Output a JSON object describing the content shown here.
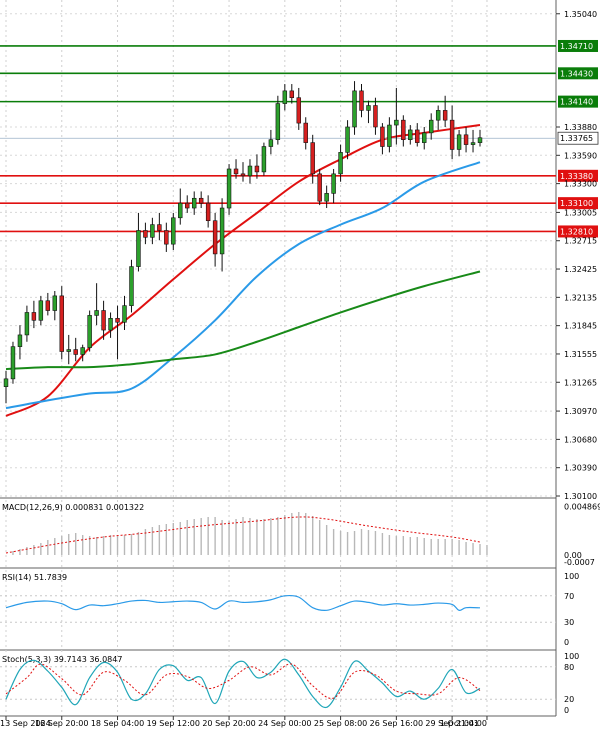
{
  "chart_data": {
    "type": "candlestick",
    "price_panel": {
      "y_ticks": [
        "1.35040",
        "1.33880",
        "1.33590",
        "1.33300",
        "1.33005",
        "1.32715",
        "1.32425",
        "1.32135",
        "1.31845",
        "1.31555",
        "1.31265",
        "1.30970",
        "1.30680",
        "1.30390",
        "1.30100"
      ],
      "ylim": [
        1.301,
        1.3514
      ],
      "current_price": "1.33765",
      "horizontal_levels": [
        {
          "label": "1.34710",
          "value": 1.3471,
          "color": "#0a7d0a"
        },
        {
          "label": "1.34430",
          "value": 1.3443,
          "color": "#0a7d0a"
        },
        {
          "label": "1.34140",
          "value": 1.3414,
          "color": "#0a7d0a"
        },
        {
          "label": "1.33380",
          "value": 1.3338,
          "color": "#e01010"
        },
        {
          "label": "1.33100",
          "value": 1.331,
          "color": "#e01010"
        },
        {
          "label": "1.32810",
          "value": 1.3281,
          "color": "#e01010"
        }
      ],
      "candles": [
        {
          "o": 1.3122,
          "h": 1.3138,
          "l": 1.3105,
          "c": 1.313
        },
        {
          "o": 1.313,
          "h": 1.3168,
          "l": 1.3125,
          "c": 1.3163
        },
        {
          "o": 1.3163,
          "h": 1.3185,
          "l": 1.315,
          "c": 1.3175
        },
        {
          "o": 1.3175,
          "h": 1.3205,
          "l": 1.3168,
          "c": 1.3198
        },
        {
          "o": 1.3198,
          "h": 1.321,
          "l": 1.3182,
          "c": 1.319
        },
        {
          "o": 1.319,
          "h": 1.3215,
          "l": 1.3185,
          "c": 1.321
        },
        {
          "o": 1.321,
          "h": 1.3218,
          "l": 1.3195,
          "c": 1.32
        },
        {
          "o": 1.32,
          "h": 1.322,
          "l": 1.319,
          "c": 1.3215
        },
        {
          "o": 1.3215,
          "h": 1.3225,
          "l": 1.315,
          "c": 1.3158
        },
        {
          "o": 1.3158,
          "h": 1.3175,
          "l": 1.3145,
          "c": 1.316
        },
        {
          "o": 1.316,
          "h": 1.3172,
          "l": 1.3148,
          "c": 1.3155
        },
        {
          "o": 1.3155,
          "h": 1.3165,
          "l": 1.3148,
          "c": 1.3162
        },
        {
          "o": 1.3162,
          "h": 1.32,
          "l": 1.3158,
          "c": 1.3195
        },
        {
          "o": 1.3195,
          "h": 1.3228,
          "l": 1.3185,
          "c": 1.32
        },
        {
          "o": 1.32,
          "h": 1.321,
          "l": 1.317,
          "c": 1.318
        },
        {
          "o": 1.318,
          "h": 1.3198,
          "l": 1.3172,
          "c": 1.3192
        },
        {
          "o": 1.3192,
          "h": 1.3205,
          "l": 1.315,
          "c": 1.3188
        },
        {
          "o": 1.3188,
          "h": 1.3215,
          "l": 1.318,
          "c": 1.3205
        },
        {
          "o": 1.3205,
          "h": 1.3252,
          "l": 1.3198,
          "c": 1.3245
        },
        {
          "o": 1.3245,
          "h": 1.33,
          "l": 1.324,
          "c": 1.3282
        },
        {
          "o": 1.3282,
          "h": 1.329,
          "l": 1.3268,
          "c": 1.3275
        },
        {
          "o": 1.3275,
          "h": 1.3295,
          "l": 1.3268,
          "c": 1.3288
        },
        {
          "o": 1.3288,
          "h": 1.33,
          "l": 1.3272,
          "c": 1.3282
        },
        {
          "o": 1.3282,
          "h": 1.329,
          "l": 1.326,
          "c": 1.3268
        },
        {
          "o": 1.3268,
          "h": 1.33,
          "l": 1.3262,
          "c": 1.3295
        },
        {
          "o": 1.3295,
          "h": 1.3325,
          "l": 1.3288,
          "c": 1.331
        },
        {
          "o": 1.331,
          "h": 1.3318,
          "l": 1.33,
          "c": 1.3305
        },
        {
          "o": 1.3305,
          "h": 1.3322,
          "l": 1.3298,
          "c": 1.3315
        },
        {
          "o": 1.3315,
          "h": 1.3322,
          "l": 1.3305,
          "c": 1.331
        },
        {
          "o": 1.331,
          "h": 1.3318,
          "l": 1.3285,
          "c": 1.3292
        },
        {
          "o": 1.3292,
          "h": 1.33,
          "l": 1.3245,
          "c": 1.3258
        },
        {
          "o": 1.3258,
          "h": 1.3315,
          "l": 1.324,
          "c": 1.3305
        },
        {
          "o": 1.3305,
          "h": 1.335,
          "l": 1.3298,
          "c": 1.3345
        },
        {
          "o": 1.3345,
          "h": 1.3355,
          "l": 1.3335,
          "c": 1.334
        },
        {
          "o": 1.334,
          "h": 1.3352,
          "l": 1.3332,
          "c": 1.3338
        },
        {
          "o": 1.3338,
          "h": 1.3355,
          "l": 1.333,
          "c": 1.3348
        },
        {
          "o": 1.3348,
          "h": 1.336,
          "l": 1.3335,
          "c": 1.3342
        },
        {
          "o": 1.3342,
          "h": 1.3372,
          "l": 1.3338,
          "c": 1.3368
        },
        {
          "o": 1.3368,
          "h": 1.3385,
          "l": 1.336,
          "c": 1.3375
        },
        {
          "o": 1.3375,
          "h": 1.342,
          "l": 1.337,
          "c": 1.3412
        },
        {
          "o": 1.3412,
          "h": 1.3432,
          "l": 1.3405,
          "c": 1.3425
        },
        {
          "o": 1.3425,
          "h": 1.3432,
          "l": 1.3412,
          "c": 1.3418
        },
        {
          "o": 1.3418,
          "h": 1.3428,
          "l": 1.3385,
          "c": 1.3392
        },
        {
          "o": 1.3392,
          "h": 1.3398,
          "l": 1.3365,
          "c": 1.3372
        },
        {
          "o": 1.3372,
          "h": 1.338,
          "l": 1.333,
          "c": 1.334
        },
        {
          "o": 1.334,
          "h": 1.3345,
          "l": 1.3308,
          "c": 1.3312
        },
        {
          "o": 1.3312,
          "h": 1.3328,
          "l": 1.3305,
          "c": 1.332
        },
        {
          "o": 1.332,
          "h": 1.3345,
          "l": 1.331,
          "c": 1.334
        },
        {
          "o": 1.334,
          "h": 1.337,
          "l": 1.3332,
          "c": 1.3362
        },
        {
          "o": 1.3362,
          "h": 1.3395,
          "l": 1.3355,
          "c": 1.3388
        },
        {
          "o": 1.3388,
          "h": 1.3435,
          "l": 1.338,
          "c": 1.3425
        },
        {
          "o": 1.3425,
          "h": 1.3432,
          "l": 1.3398,
          "c": 1.3405
        },
        {
          "o": 1.3405,
          "h": 1.3415,
          "l": 1.3392,
          "c": 1.341
        },
        {
          "o": 1.341,
          "h": 1.3418,
          "l": 1.338,
          "c": 1.3388
        },
        {
          "o": 1.3388,
          "h": 1.3392,
          "l": 1.336,
          "c": 1.3368
        },
        {
          "o": 1.3368,
          "h": 1.3398,
          "l": 1.3362,
          "c": 1.339
        },
        {
          "o": 1.339,
          "h": 1.3428,
          "l": 1.337,
          "c": 1.3395
        },
        {
          "o": 1.3395,
          "h": 1.34,
          "l": 1.3368,
          "c": 1.3375
        },
        {
          "o": 1.3375,
          "h": 1.339,
          "l": 1.337,
          "c": 1.3385
        },
        {
          "o": 1.3385,
          "h": 1.3392,
          "l": 1.3368,
          "c": 1.3372
        },
        {
          "o": 1.3372,
          "h": 1.3388,
          "l": 1.3365,
          "c": 1.3382
        },
        {
          "o": 1.3382,
          "h": 1.3402,
          "l": 1.3375,
          "c": 1.3395
        },
        {
          "o": 1.3395,
          "h": 1.341,
          "l": 1.3385,
          "c": 1.3405
        },
        {
          "o": 1.3405,
          "h": 1.342,
          "l": 1.3388,
          "c": 1.3395
        },
        {
          "o": 1.3395,
          "h": 1.341,
          "l": 1.3355,
          "c": 1.3365
        },
        {
          "o": 1.3365,
          "h": 1.3385,
          "l": 1.3358,
          "c": 1.338
        },
        {
          "o": 1.338,
          "h": 1.3388,
          "l": 1.3362,
          "c": 1.337
        },
        {
          "o": 1.337,
          "h": 1.3385,
          "l": 1.3362,
          "c": 1.3372
        },
        {
          "o": 1.3372,
          "h": 1.3385,
          "l": 1.3368,
          "c": 1.3377
        }
      ],
      "moving_averages": [
        {
          "color": "#e01010",
          "points": [
            [
              0,
              1.3092
            ],
            [
              6,
              1.3112
            ],
            [
              12,
              1.3162
            ],
            [
              18,
              1.3195
            ],
            [
              24,
              1.3232
            ],
            [
              30,
              1.3268
            ],
            [
              36,
              1.33
            ],
            [
              42,
              1.3332
            ],
            [
              48,
              1.3355
            ],
            [
              54,
              1.3375
            ],
            [
              60,
              1.3382
            ],
            [
              68,
              1.339
            ]
          ]
        },
        {
          "color": "#2a9ae8",
          "points": [
            [
              0,
              1.31
            ],
            [
              6,
              1.3108
            ],
            [
              12,
              1.3115
            ],
            [
              18,
              1.312
            ],
            [
              24,
              1.3152
            ],
            [
              30,
              1.319
            ],
            [
              36,
              1.3235
            ],
            [
              42,
              1.3268
            ],
            [
              48,
              1.3288
            ],
            [
              54,
              1.3305
            ],
            [
              60,
              1.3332
            ],
            [
              68,
              1.3352
            ]
          ]
        },
        {
          "color": "#188a18",
          "points": [
            [
              0,
              1.314
            ],
            [
              6,
              1.3142
            ],
            [
              12,
              1.3142
            ],
            [
              18,
              1.3145
            ],
            [
              24,
              1.315
            ],
            [
              30,
              1.3155
            ],
            [
              36,
              1.3168
            ],
            [
              42,
              1.3183
            ],
            [
              48,
              1.3198
            ],
            [
              54,
              1.3212
            ],
            [
              60,
              1.3225
            ],
            [
              68,
              1.324
            ]
          ]
        }
      ]
    },
    "macd_panel": {
      "label": "MACD(12,26,9) 0.000831 0.001322",
      "y_ticks": [
        "0.004869",
        "0.00",
        "-0.0007"
      ],
      "ylim": [
        -0.0007,
        0.0049
      ],
      "histogram": [
        0.0004,
        0.0006,
        0.0008,
        0.001,
        0.0012,
        0.0015,
        0.0017,
        0.0019,
        0.0021,
        0.0022,
        0.002,
        0.0019,
        0.0018,
        0.0019,
        0.002,
        0.0019,
        0.002,
        0.0021,
        0.0023,
        0.0026,
        0.0028,
        0.003,
        0.0031,
        0.0032,
        0.0033,
        0.0035,
        0.0036,
        0.0037,
        0.0038,
        0.0038,
        0.0035,
        0.0034,
        0.0036,
        0.0038,
        0.0037,
        0.0036,
        0.0036,
        0.0037,
        0.0038,
        0.004,
        0.0042,
        0.0043,
        0.0042,
        0.0039,
        0.0035,
        0.003,
        0.0026,
        0.0024,
        0.0023,
        0.0024,
        0.0026,
        0.0025,
        0.0024,
        0.0022,
        0.002,
        0.0019,
        0.0019,
        0.0018,
        0.0018,
        0.0017,
        0.0016,
        0.0016,
        0.0016,
        0.0016,
        0.0015,
        0.0013,
        0.0012,
        0.0011,
        0.001
      ],
      "signal_points": [
        [
          0,
          0.0002
        ],
        [
          8,
          0.0012
        ],
        [
          14,
          0.0018
        ],
        [
          20,
          0.0022
        ],
        [
          28,
          0.0029
        ],
        [
          36,
          0.0034
        ],
        [
          42,
          0.0038
        ],
        [
          46,
          0.0036
        ],
        [
          52,
          0.0029
        ],
        [
          58,
          0.0023
        ],
        [
          64,
          0.0018
        ],
        [
          68,
          0.0013
        ]
      ]
    },
    "rsi_panel": {
      "label": "RSI(14) 51.7839",
      "y_ticks": [
        "100",
        "70",
        "30",
        "0"
      ],
      "ylim": [
        0,
        100
      ],
      "points": [
        [
          0,
          52
        ],
        [
          3,
          60
        ],
        [
          6,
          62
        ],
        [
          8,
          58
        ],
        [
          10,
          49
        ],
        [
          12,
          56
        ],
        [
          14,
          55
        ],
        [
          16,
          58
        ],
        [
          18,
          62
        ],
        [
          20,
          63
        ],
        [
          22,
          60
        ],
        [
          24,
          61
        ],
        [
          26,
          62
        ],
        [
          28,
          60
        ],
        [
          30,
          50
        ],
        [
          32,
          62
        ],
        [
          34,
          60
        ],
        [
          36,
          61
        ],
        [
          38,
          64
        ],
        [
          40,
          70
        ],
        [
          42,
          68
        ],
        [
          44,
          52
        ],
        [
          46,
          48
        ],
        [
          48,
          55
        ],
        [
          50,
          62
        ],
        [
          52,
          60
        ],
        [
          54,
          56
        ],
        [
          56,
          58
        ],
        [
          58,
          56
        ],
        [
          60,
          57
        ],
        [
          62,
          59
        ],
        [
          64,
          57
        ],
        [
          65,
          48
        ],
        [
          66,
          52
        ],
        [
          68,
          51.8
        ]
      ]
    },
    "stoch_panel": {
      "label": "Stoch(5,3,3) 39.7143 36.0847",
      "y_ticks": [
        "100",
        "80",
        "20",
        "0"
      ],
      "ylim": [
        0,
        100
      ],
      "main_points": [
        [
          0,
          20
        ],
        [
          2,
          75
        ],
        [
          4,
          92
        ],
        [
          6,
          72
        ],
        [
          8,
          42
        ],
        [
          10,
          10
        ],
        [
          12,
          60
        ],
        [
          14,
          88
        ],
        [
          16,
          70
        ],
        [
          18,
          20
        ],
        [
          20,
          30
        ],
        [
          22,
          75
        ],
        [
          24,
          82
        ],
        [
          26,
          55
        ],
        [
          28,
          60
        ],
        [
          30,
          12
        ],
        [
          32,
          72
        ],
        [
          34,
          90
        ],
        [
          36,
          60
        ],
        [
          38,
          70
        ],
        [
          40,
          94
        ],
        [
          42,
          65
        ],
        [
          44,
          25
        ],
        [
          46,
          5
        ],
        [
          48,
          42
        ],
        [
          50,
          90
        ],
        [
          52,
          72
        ],
        [
          54,
          50
        ],
        [
          56,
          25
        ],
        [
          58,
          35
        ],
        [
          60,
          20
        ],
        [
          62,
          40
        ],
        [
          64,
          75
        ],
        [
          66,
          32
        ],
        [
          68,
          40
        ]
      ],
      "signal_points": [
        [
          0,
          30
        ],
        [
          3,
          60
        ],
        [
          5,
          85
        ],
        [
          8,
          58
        ],
        [
          11,
          28
        ],
        [
          14,
          70
        ],
        [
          17,
          55
        ],
        [
          20,
          28
        ],
        [
          23,
          65
        ],
        [
          26,
          62
        ],
        [
          29,
          40
        ],
        [
          32,
          55
        ],
        [
          35,
          80
        ],
        [
          38,
          65
        ],
        [
          41,
          85
        ],
        [
          44,
          45
        ],
        [
          47,
          22
        ],
        [
          50,
          70
        ],
        [
          53,
          65
        ],
        [
          56,
          35
        ],
        [
          59,
          30
        ],
        [
          62,
          30
        ],
        [
          65,
          60
        ],
        [
          68,
          36
        ]
      ]
    },
    "x_tick_labels": [
      {
        "index": 0,
        "label": "13 Sep 2024"
      },
      {
        "index": 8,
        "label": "16 Sep 20:00"
      },
      {
        "index": 16,
        "label": "18 Sep 04:00"
      },
      {
        "index": 24,
        "label": "19 Sep 12:00"
      },
      {
        "index": 32,
        "label": "20 Sep 20:00"
      },
      {
        "index": 40,
        "label": "24 Sep 00:00"
      },
      {
        "index": 48,
        "label": "25 Sep 08:00"
      },
      {
        "index": 56,
        "label": "26 Sep 16:00"
      },
      {
        "index": 64,
        "label": "29 Sep 21:01"
      },
      {
        "index": 69,
        "label": "1 Oct 04:00"
      }
    ]
  }
}
